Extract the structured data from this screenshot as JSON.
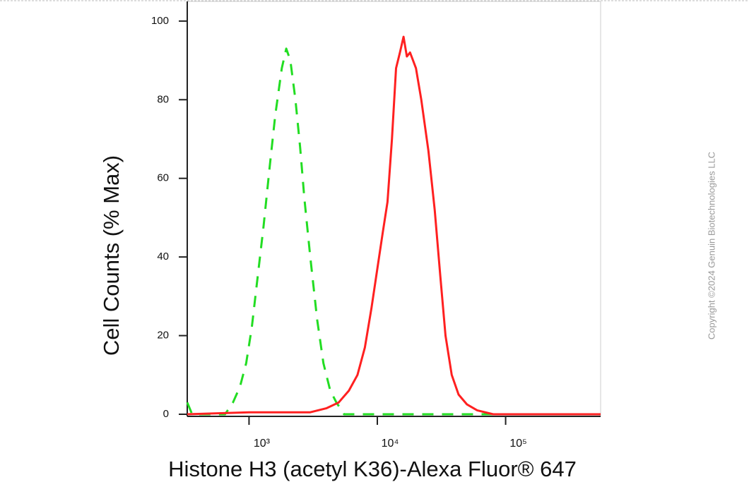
{
  "chart_data": {
    "type": "line",
    "x_label": "Histone H3 (acetyl K36)-Alexa Fluor® 647",
    "y_label": "Cell Counts (% Max)",
    "copyright": "Copyright ©2024 Genuin Biotechnologies LLC",
    "xscale": "log",
    "xlim": [
      330,
      550000
    ],
    "ylim": [
      0,
      105
    ],
    "xticks": [
      {
        "value": 1000,
        "label": "10³"
      },
      {
        "value": 10000,
        "label": "10⁴"
      },
      {
        "value": 100000,
        "label": "10⁵"
      }
    ],
    "yticks": [
      0,
      20,
      40,
      60,
      80,
      100
    ],
    "series": [
      {
        "color": "#22dd22",
        "dash": true,
        "x": [
          330,
          360,
          500,
          650,
          750,
          850,
          950,
          1050,
          1150,
          1300,
          1450,
          1600,
          1800,
          1950,
          2100,
          2300,
          2500,
          2700,
          3000,
          3400,
          3800,
          4300,
          4800,
          5500,
          550000
        ],
        "values": [
          3,
          0,
          0,
          0,
          3,
          7,
          13,
          22,
          33,
          48,
          63,
          76,
          88,
          93,
          90,
          80,
          68,
          55,
          40,
          24,
          13,
          6,
          3,
          0,
          0
        ]
      },
      {
        "color": "#ff2020",
        "dash": false,
        "x": [
          330,
          1000,
          2000,
          3000,
          4000,
          5000,
          6000,
          7000,
          8000,
          9000,
          10000,
          11000,
          12000,
          13000,
          14000,
          15000,
          16000,
          17000,
          18000,
          20000,
          22000,
          25000,
          28000,
          31000,
          34000,
          38000,
          43000,
          50000,
          60000,
          80000,
          550000
        ],
        "values": [
          0,
          0.5,
          0.5,
          0.5,
          1.5,
          3,
          6,
          10,
          17,
          27,
          37,
          46,
          54,
          70,
          88,
          92,
          96,
          91,
          92,
          88,
          80,
          67,
          52,
          35,
          20,
          10,
          5,
          2.5,
          1,
          0,
          0
        ]
      }
    ]
  }
}
